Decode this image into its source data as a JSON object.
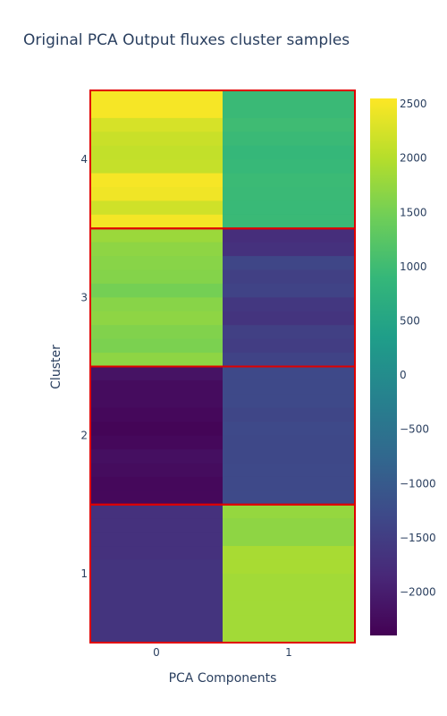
{
  "chart_data": {
    "type": "heatmap",
    "title": "Original PCA Output fluxes cluster samples",
    "xlabel": "PCA Components",
    "ylabel": "Cluster",
    "x_categories": [
      "0",
      "1"
    ],
    "y_categories": [
      "1",
      "2",
      "3",
      "4"
    ],
    "colorscale": "viridis",
    "zmin": -2400,
    "zmax": 2550,
    "colorbar_ticks": [
      2500,
      2000,
      1500,
      1000,
      500,
      0,
      -500,
      -1000,
      -1500,
      -2000
    ],
    "colorbar_tick_labels": [
      "2500",
      "2000",
      "1500",
      "1000",
      "500",
      "0",
      "−500",
      "−1000",
      "−1500",
      "−2000"
    ],
    "cluster_box_color": "#e00000",
    "rows_per_cluster": 10,
    "values": [
      {
        "cluster": "4",
        "component_0": [
          2500,
          2500,
          2250,
          2150,
          2100,
          2120,
          2500,
          2450,
          2200,
          2480
        ],
        "component_1": [
          950,
          950,
          1000,
          950,
          900,
          920,
          960,
          950,
          940,
          950
        ]
      },
      {
        "cluster": "3",
        "component_0": [
          1800,
          1700,
          1650,
          1620,
          1500,
          1650,
          1700,
          1600,
          1550,
          1700
        ],
        "component_1": [
          -1750,
          -1700,
          -1350,
          -1450,
          -1400,
          -1600,
          -1650,
          -1450,
          -1500,
          -1400
        ]
      },
      {
        "cluster": "2",
        "component_0": [
          -2150,
          -2250,
          -2250,
          -2300,
          -2350,
          -2300,
          -2200,
          -2250,
          -2300,
          -2300
        ],
        "component_1": [
          -1300,
          -1300,
          -1300,
          -1350,
          -1300,
          -1320,
          -1320,
          -1300,
          -1300,
          -1280
        ]
      },
      {
        "cluster": "1",
        "component_0": [
          -1700,
          -1700,
          -1700,
          -1700,
          -1650,
          -1650,
          -1650,
          -1650,
          -1650,
          -1650
        ],
        "component_1": [
          1750,
          1700,
          1700,
          1900,
          1900,
          1850,
          1850,
          1850,
          1850,
          1850
        ]
      }
    ]
  }
}
